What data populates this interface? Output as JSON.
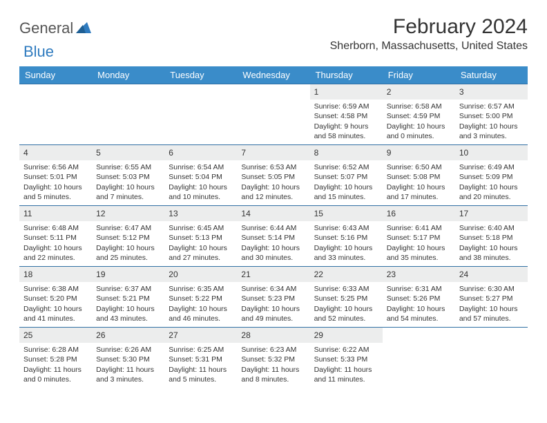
{
  "logo": {
    "general": "General",
    "blue": "Blue"
  },
  "title": "February 2024",
  "location": "Sherborn, Massachusetts, United States",
  "colors": {
    "header_bg": "#3a8cc9",
    "header_text": "#ffffff",
    "daynum_bg": "#eceded",
    "row_border": "#2f6fa3",
    "logo_blue": "#2f7bbf"
  },
  "weekdays": [
    "Sunday",
    "Monday",
    "Tuesday",
    "Wednesday",
    "Thursday",
    "Friday",
    "Saturday"
  ],
  "weeks": [
    [
      {
        "n": "",
        "lines": []
      },
      {
        "n": "",
        "lines": []
      },
      {
        "n": "",
        "lines": []
      },
      {
        "n": "",
        "lines": []
      },
      {
        "n": "1",
        "lines": [
          "Sunrise: 6:59 AM",
          "Sunset: 4:58 PM",
          "Daylight: 9 hours",
          "and 58 minutes."
        ]
      },
      {
        "n": "2",
        "lines": [
          "Sunrise: 6:58 AM",
          "Sunset: 4:59 PM",
          "Daylight: 10 hours",
          "and 0 minutes."
        ]
      },
      {
        "n": "3",
        "lines": [
          "Sunrise: 6:57 AM",
          "Sunset: 5:00 PM",
          "Daylight: 10 hours",
          "and 3 minutes."
        ]
      }
    ],
    [
      {
        "n": "4",
        "lines": [
          "Sunrise: 6:56 AM",
          "Sunset: 5:01 PM",
          "Daylight: 10 hours",
          "and 5 minutes."
        ]
      },
      {
        "n": "5",
        "lines": [
          "Sunrise: 6:55 AM",
          "Sunset: 5:03 PM",
          "Daylight: 10 hours",
          "and 7 minutes."
        ]
      },
      {
        "n": "6",
        "lines": [
          "Sunrise: 6:54 AM",
          "Sunset: 5:04 PM",
          "Daylight: 10 hours",
          "and 10 minutes."
        ]
      },
      {
        "n": "7",
        "lines": [
          "Sunrise: 6:53 AM",
          "Sunset: 5:05 PM",
          "Daylight: 10 hours",
          "and 12 minutes."
        ]
      },
      {
        "n": "8",
        "lines": [
          "Sunrise: 6:52 AM",
          "Sunset: 5:07 PM",
          "Daylight: 10 hours",
          "and 15 minutes."
        ]
      },
      {
        "n": "9",
        "lines": [
          "Sunrise: 6:50 AM",
          "Sunset: 5:08 PM",
          "Daylight: 10 hours",
          "and 17 minutes."
        ]
      },
      {
        "n": "10",
        "lines": [
          "Sunrise: 6:49 AM",
          "Sunset: 5:09 PM",
          "Daylight: 10 hours",
          "and 20 minutes."
        ]
      }
    ],
    [
      {
        "n": "11",
        "lines": [
          "Sunrise: 6:48 AM",
          "Sunset: 5:11 PM",
          "Daylight: 10 hours",
          "and 22 minutes."
        ]
      },
      {
        "n": "12",
        "lines": [
          "Sunrise: 6:47 AM",
          "Sunset: 5:12 PM",
          "Daylight: 10 hours",
          "and 25 minutes."
        ]
      },
      {
        "n": "13",
        "lines": [
          "Sunrise: 6:45 AM",
          "Sunset: 5:13 PM",
          "Daylight: 10 hours",
          "and 27 minutes."
        ]
      },
      {
        "n": "14",
        "lines": [
          "Sunrise: 6:44 AM",
          "Sunset: 5:14 PM",
          "Daylight: 10 hours",
          "and 30 minutes."
        ]
      },
      {
        "n": "15",
        "lines": [
          "Sunrise: 6:43 AM",
          "Sunset: 5:16 PM",
          "Daylight: 10 hours",
          "and 33 minutes."
        ]
      },
      {
        "n": "16",
        "lines": [
          "Sunrise: 6:41 AM",
          "Sunset: 5:17 PM",
          "Daylight: 10 hours",
          "and 35 minutes."
        ]
      },
      {
        "n": "17",
        "lines": [
          "Sunrise: 6:40 AM",
          "Sunset: 5:18 PM",
          "Daylight: 10 hours",
          "and 38 minutes."
        ]
      }
    ],
    [
      {
        "n": "18",
        "lines": [
          "Sunrise: 6:38 AM",
          "Sunset: 5:20 PM",
          "Daylight: 10 hours",
          "and 41 minutes."
        ]
      },
      {
        "n": "19",
        "lines": [
          "Sunrise: 6:37 AM",
          "Sunset: 5:21 PM",
          "Daylight: 10 hours",
          "and 43 minutes."
        ]
      },
      {
        "n": "20",
        "lines": [
          "Sunrise: 6:35 AM",
          "Sunset: 5:22 PM",
          "Daylight: 10 hours",
          "and 46 minutes."
        ]
      },
      {
        "n": "21",
        "lines": [
          "Sunrise: 6:34 AM",
          "Sunset: 5:23 PM",
          "Daylight: 10 hours",
          "and 49 minutes."
        ]
      },
      {
        "n": "22",
        "lines": [
          "Sunrise: 6:33 AM",
          "Sunset: 5:25 PM",
          "Daylight: 10 hours",
          "and 52 minutes."
        ]
      },
      {
        "n": "23",
        "lines": [
          "Sunrise: 6:31 AM",
          "Sunset: 5:26 PM",
          "Daylight: 10 hours",
          "and 54 minutes."
        ]
      },
      {
        "n": "24",
        "lines": [
          "Sunrise: 6:30 AM",
          "Sunset: 5:27 PM",
          "Daylight: 10 hours",
          "and 57 minutes."
        ]
      }
    ],
    [
      {
        "n": "25",
        "lines": [
          "Sunrise: 6:28 AM",
          "Sunset: 5:28 PM",
          "Daylight: 11 hours",
          "and 0 minutes."
        ]
      },
      {
        "n": "26",
        "lines": [
          "Sunrise: 6:26 AM",
          "Sunset: 5:30 PM",
          "Daylight: 11 hours",
          "and 3 minutes."
        ]
      },
      {
        "n": "27",
        "lines": [
          "Sunrise: 6:25 AM",
          "Sunset: 5:31 PM",
          "Daylight: 11 hours",
          "and 5 minutes."
        ]
      },
      {
        "n": "28",
        "lines": [
          "Sunrise: 6:23 AM",
          "Sunset: 5:32 PM",
          "Daylight: 11 hours",
          "and 8 minutes."
        ]
      },
      {
        "n": "29",
        "lines": [
          "Sunrise: 6:22 AM",
          "Sunset: 5:33 PM",
          "Daylight: 11 hours",
          "and 11 minutes."
        ]
      },
      {
        "n": "",
        "lines": []
      },
      {
        "n": "",
        "lines": []
      }
    ]
  ]
}
